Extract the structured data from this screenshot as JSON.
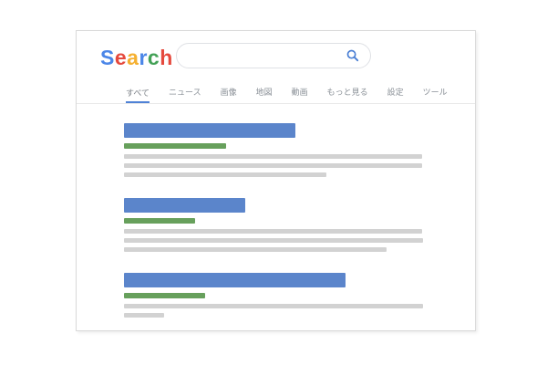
{
  "logo": {
    "text": "Search",
    "letters": [
      {
        "char": "S",
        "color": "#4b86e8"
      },
      {
        "char": "e",
        "color": "#e5493d"
      },
      {
        "char": "a",
        "color": "#f5b030"
      },
      {
        "char": "r",
        "color": "#4b86e8"
      },
      {
        "char": "c",
        "color": "#43a156"
      },
      {
        "char": "h",
        "color": "#e5493d"
      }
    ]
  },
  "search": {
    "value": "",
    "placeholder": "",
    "icon": "magnifier-icon",
    "icon_color": "#4a7fd4"
  },
  "tabs": {
    "items": [
      {
        "name": "all",
        "label": "すべて",
        "active": true
      },
      {
        "name": "news",
        "label": "ニュース",
        "active": false
      },
      {
        "name": "images",
        "label": "画像",
        "active": false
      },
      {
        "name": "maps",
        "label": "地図",
        "active": false
      },
      {
        "name": "videos",
        "label": "動画",
        "active": false
      },
      {
        "name": "more",
        "label": "もっと見る",
        "active": false
      },
      {
        "name": "settings",
        "label": "設定",
        "active": false
      },
      {
        "name": "tools",
        "label": "ツール",
        "active": false
      }
    ]
  },
  "colors": {
    "title_bar": "#5b85cb",
    "url_bar": "#67a05c",
    "text_bar": "#d2d2d2",
    "card_border": "#d9d9d9",
    "divider": "#e8e8e8",
    "pill_border": "#dfe1e5",
    "tab_text": "#8a9097",
    "tab_text_active": "#7b8087",
    "underline": "#4f82d6"
  },
  "results": [
    {
      "title_width": 188,
      "url_width": 112,
      "line_widths": [
        327,
        327,
        222
      ]
    },
    {
      "title_width": 133,
      "url_width": 78,
      "line_widths": [
        327,
        328,
        288
      ]
    },
    {
      "title_width": 243,
      "url_width": 89,
      "line_widths": [
        328,
        44
      ]
    }
  ]
}
